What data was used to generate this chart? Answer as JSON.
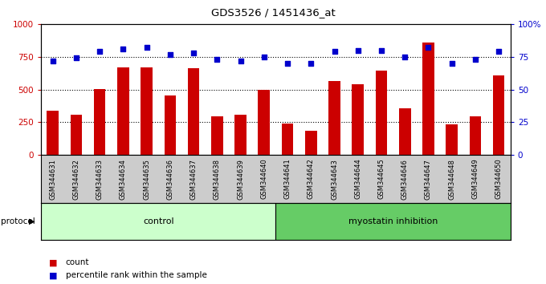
{
  "title": "GDS3526 / 1451436_at",
  "samples": [
    "GSM344631",
    "GSM344632",
    "GSM344633",
    "GSM344634",
    "GSM344635",
    "GSM344636",
    "GSM344637",
    "GSM344638",
    "GSM344639",
    "GSM344640",
    "GSM344641",
    "GSM344642",
    "GSM344643",
    "GSM344644",
    "GSM344645",
    "GSM344646",
    "GSM344647",
    "GSM344648",
    "GSM344649",
    "GSM344650"
  ],
  "counts": [
    335,
    305,
    505,
    670,
    670,
    455,
    665,
    295,
    305,
    500,
    240,
    185,
    565,
    540,
    645,
    355,
    860,
    235,
    295,
    610
  ],
  "percentiles": [
    72,
    74,
    79,
    81,
    82,
    77,
    78,
    73,
    72,
    75,
    70,
    70,
    79,
    80,
    80,
    75,
    82,
    70,
    73,
    79
  ],
  "control_count": 10,
  "myostatin_count": 10,
  "bar_color": "#cc0000",
  "dot_color": "#0000cc",
  "grid_color": "#000000",
  "bg_color": "#ffffff",
  "tick_area_color": "#cccccc",
  "control_color": "#ccffcc",
  "myostatin_color": "#66cc66",
  "ylim_left": [
    0,
    1000
  ],
  "ylim_right": [
    0,
    100
  ],
  "yticks_left": [
    0,
    250,
    500,
    750,
    1000
  ],
  "yticks_right": [
    0,
    25,
    50,
    75,
    100
  ],
  "ytick_labels_left": [
    "0",
    "250",
    "500",
    "750",
    "1000"
  ],
  "ytick_labels_right": [
    "0",
    "25",
    "50",
    "75",
    "100%"
  ],
  "hline_values": [
    250,
    500,
    750
  ],
  "legend_items": [
    "count",
    "percentile rank within the sample"
  ],
  "protocol_label": "protocol",
  "control_label": "control",
  "myostatin_label": "myostatin inhibition"
}
